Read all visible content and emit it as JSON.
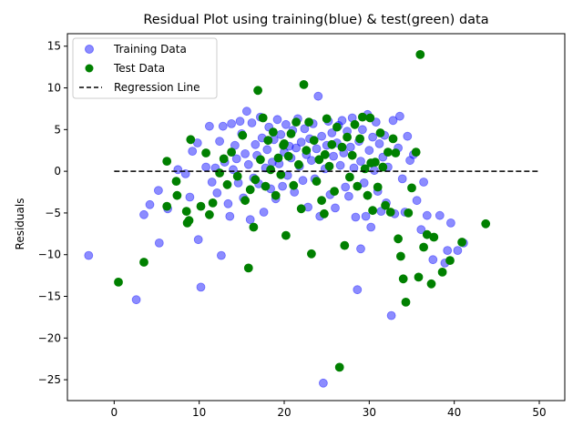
{
  "chart_data": {
    "type": "scatter",
    "title": "Residual Plot using training(blue) & test(green) data",
    "xlabel": "",
    "ylabel": "Residuals",
    "xlim": [
      -5.5,
      53
    ],
    "ylim": [
      -27.5,
      16.5
    ],
    "xticks": [
      0,
      10,
      20,
      30,
      40,
      50
    ],
    "yticks": [
      -25,
      -20,
      -15,
      -10,
      -5,
      0,
      5,
      10,
      15
    ],
    "grid": false,
    "legend": "top-left",
    "regression_line": {
      "name": "Regression Line",
      "x": [
        0,
        50
      ],
      "y": [
        0,
        0
      ],
      "color": "#000000",
      "style": "dashed"
    },
    "series": [
      {
        "name": "Training Data",
        "color": "#0000ff",
        "alpha": 0.45,
        "points": [
          [
            -3,
            -10.1
          ],
          [
            2.6,
            -15.4
          ],
          [
            3.5,
            -5.2
          ],
          [
            4.2,
            -4
          ],
          [
            5.2,
            -2.3
          ],
          [
            5.3,
            -8.6
          ],
          [
            6.3,
            -4.5
          ],
          [
            7.5,
            0.2
          ],
          [
            8.4,
            -0.3
          ],
          [
            8.9,
            -3.1
          ],
          [
            9.2,
            2.4
          ],
          [
            9.8,
            3.4
          ],
          [
            9.9,
            -8.2
          ],
          [
            10.2,
            -13.9
          ],
          [
            10.8,
            0.5
          ],
          [
            11.2,
            5.4
          ],
          [
            11.5,
            -1.3
          ],
          [
            11.9,
            0.4
          ],
          [
            12.1,
            -2.6
          ],
          [
            12.4,
            3.6
          ],
          [
            12.6,
            -10.1
          ],
          [
            12.8,
            5.4
          ],
          [
            13.0,
            1.1
          ],
          [
            13.4,
            -3.9
          ],
          [
            13.6,
            -5.4
          ],
          [
            13.8,
            5.7
          ],
          [
            14.0,
            0.2
          ],
          [
            14.2,
            3.1
          ],
          [
            14.4,
            1.5
          ],
          [
            14.6,
            -1.4
          ],
          [
            14.8,
            6.0
          ],
          [
            15.0,
            4.5
          ],
          [
            15.2,
            -3.2
          ],
          [
            15.4,
            2.1
          ],
          [
            15.6,
            7.2
          ],
          [
            15.8,
            0.8
          ],
          [
            16.0,
            -5.8
          ],
          [
            16.2,
            5.8
          ],
          [
            16.4,
            -0.8
          ],
          [
            16.6,
            3.2
          ],
          [
            16.8,
            1.9
          ],
          [
            17.0,
            -1.5
          ],
          [
            17.2,
            6.5
          ],
          [
            17.4,
            4.0
          ],
          [
            17.6,
            -4.9
          ],
          [
            17.8,
            0.4
          ],
          [
            18.0,
            2.6
          ],
          [
            18.2,
            5.3
          ],
          [
            18.4,
            -2.1
          ],
          [
            18.6,
            1.1
          ],
          [
            18.8,
            3.8
          ],
          [
            19.0,
            -3.3
          ],
          [
            19.2,
            6.2
          ],
          [
            19.4,
            0.9
          ],
          [
            19.6,
            4.4
          ],
          [
            19.8,
            -1.8
          ],
          [
            20.0,
            2.3
          ],
          [
            20.2,
            5.6
          ],
          [
            20.4,
            -0.5
          ],
          [
            20.6,
            3.0
          ],
          [
            20.8,
            1.6
          ],
          [
            21.0,
            4.9
          ],
          [
            21.2,
            -2.5
          ],
          [
            21.4,
            2.8
          ],
          [
            21.6,
            6.3
          ],
          [
            21.8,
            0.6
          ],
          [
            22.0,
            3.5
          ],
          [
            22.2,
            -1.1
          ],
          [
            22.4,
            5.1
          ],
          [
            22.6,
            2.0
          ],
          [
            22.8,
            -4.3
          ],
          [
            23.0,
            3.9
          ],
          [
            23.2,
            1.3
          ],
          [
            23.4,
            5.7
          ],
          [
            23.6,
            -0.9
          ],
          [
            23.8,
            2.7
          ],
          [
            24.0,
            9.0
          ],
          [
            24.2,
            -5.4
          ],
          [
            24.4,
            4.2
          ],
          [
            24.6,
            -25.4
          ],
          [
            24.8,
            0.3
          ],
          [
            25.0,
            3.1
          ],
          [
            25.2,
            6.0
          ],
          [
            25.4,
            -2.8
          ],
          [
            25.6,
            4.6
          ],
          [
            25.8,
            1.8
          ],
          [
            26.0,
            -4.4
          ],
          [
            26.2,
            3.4
          ],
          [
            26.4,
            5.5
          ],
          [
            26.6,
            0.7
          ],
          [
            26.8,
            6.1
          ],
          [
            27.0,
            2.2
          ],
          [
            27.2,
            -1.9
          ],
          [
            27.4,
            4.8
          ],
          [
            27.6,
            -3.0
          ],
          [
            27.8,
            2.9
          ],
          [
            28.0,
            6.4
          ],
          [
            28.2,
            0.4
          ],
          [
            28.4,
            -5.5
          ],
          [
            28.6,
            -14.2
          ],
          [
            28.8,
            3.6
          ],
          [
            29.0,
            1.2
          ],
          [
            29.2,
            5.0
          ],
          [
            29.4,
            -1.4
          ],
          [
            29.6,
            -5.4
          ],
          [
            29.8,
            6.8
          ],
          [
            30.0,
            2.5
          ],
          [
            30.2,
            -6.7
          ],
          [
            30.4,
            4.1
          ],
          [
            30.6,
            0.1
          ],
          [
            30.8,
            5.9
          ],
          [
            31.0,
            -2.4
          ],
          [
            31.2,
            3.3
          ],
          [
            31.4,
            -4.8
          ],
          [
            31.6,
            1.7
          ],
          [
            31.8,
            4.3
          ],
          [
            32.0,
            -3.8
          ],
          [
            32.2,
            0.5
          ],
          [
            32.6,
            -17.3
          ],
          [
            32.8,
            6.1
          ],
          [
            33.0,
            -5.1
          ],
          [
            33.4,
            2.8
          ],
          [
            33.6,
            6.6
          ],
          [
            33.9,
            -0.9
          ],
          [
            34.2,
            -4.9
          ],
          [
            34.5,
            4.2
          ],
          [
            34.8,
            1.3
          ],
          [
            35.2,
            2.0
          ],
          [
            35.6,
            -3.5
          ],
          [
            36.1,
            -7.0
          ],
          [
            36.4,
            -1.3
          ],
          [
            36.8,
            -5.3
          ],
          [
            37.5,
            -10.6
          ],
          [
            38.3,
            -5.3
          ],
          [
            38.9,
            -11.0
          ],
          [
            39.2,
            -9.5
          ],
          [
            39.6,
            -6.2
          ],
          [
            40.4,
            -9.5
          ],
          [
            41.1,
            -8.6
          ],
          [
            29.0,
            -9.3
          ]
        ]
      },
      {
        "name": "Test Data",
        "color": "#008000",
        "alpha": 1.0,
        "points": [
          [
            0.5,
            -13.3
          ],
          [
            3.5,
            -10.9
          ],
          [
            6.2,
            1.2
          ],
          [
            6.2,
            -4.2
          ],
          [
            7.3,
            -1.2
          ],
          [
            7.4,
            -2.9
          ],
          [
            8.5,
            -4.8
          ],
          [
            8.6,
            -6.2
          ],
          [
            8.8,
            -5.9
          ],
          [
            9.0,
            3.8
          ],
          [
            10.2,
            -4.2
          ],
          [
            10.8,
            2.2
          ],
          [
            11.2,
            -5.2
          ],
          [
            11.6,
            -3.8
          ],
          [
            12.4,
            -0.2
          ],
          [
            12.9,
            1.5
          ],
          [
            13.3,
            -1.6
          ],
          [
            13.8,
            2.3
          ],
          [
            14.5,
            -0.6
          ],
          [
            15.1,
            4.3
          ],
          [
            15.4,
            -3.5
          ],
          [
            15.8,
            -11.6
          ],
          [
            16.0,
            -2.2
          ],
          [
            16.4,
            -6.7
          ],
          [
            16.6,
            -1.0
          ],
          [
            16.9,
            9.7
          ],
          [
            17.2,
            1.4
          ],
          [
            17.5,
            6.4
          ],
          [
            17.8,
            -1.8
          ],
          [
            18.1,
            3.7
          ],
          [
            18.4,
            0.2
          ],
          [
            18.7,
            4.7
          ],
          [
            19.0,
            -2.9
          ],
          [
            19.3,
            1.6
          ],
          [
            19.6,
            -0.4
          ],
          [
            19.9,
            3.1
          ],
          [
            20.2,
            -7.7
          ],
          [
            20.5,
            1.8
          ],
          [
            20.8,
            4.5
          ],
          [
            21.1,
            -1.7
          ],
          [
            21.4,
            5.9
          ],
          [
            21.7,
            0.8
          ],
          [
            22.0,
            -4.5
          ],
          [
            22.3,
            10.4
          ],
          [
            22.6,
            2.5
          ],
          [
            22.9,
            5.9
          ],
          [
            23.2,
            -9.9
          ],
          [
            23.5,
            3.7
          ],
          [
            23.8,
            -1.2
          ],
          [
            24.1,
            1.4
          ],
          [
            24.4,
            -3.5
          ],
          [
            24.7,
            -5.1
          ],
          [
            25.0,
            6.3
          ],
          [
            25.3,
            0.6
          ],
          [
            25.6,
            3.2
          ],
          [
            25.9,
            -2.4
          ],
          [
            26.2,
            5.3
          ],
          [
            26.5,
            -23.5
          ],
          [
            26.8,
            2.9
          ],
          [
            27.1,
            -8.9
          ],
          [
            27.4,
            4.1
          ],
          [
            27.7,
            -0.7
          ],
          [
            28.0,
            1.9
          ],
          [
            28.3,
            5.6
          ],
          [
            28.6,
            -1.8
          ],
          [
            28.9,
            3.9
          ],
          [
            29.2,
            6.5
          ],
          [
            29.5,
            0.3
          ],
          [
            29.8,
            -2.9
          ],
          [
            30.1,
            6.4
          ],
          [
            30.4,
            -4.7
          ],
          [
            30.7,
            1.1
          ],
          [
            31.0,
            -1.9
          ],
          [
            31.3,
            4.6
          ],
          [
            31.6,
            0.5
          ],
          [
            31.9,
            -4.1
          ],
          [
            32.2,
            2.3
          ],
          [
            32.5,
            -4.9
          ],
          [
            32.8,
            3.9
          ],
          [
            33.1,
            2.2
          ],
          [
            33.4,
            -8.1
          ],
          [
            33.7,
            -10.2
          ],
          [
            34.0,
            -12.9
          ],
          [
            34.3,
            -15.7
          ],
          [
            34.6,
            -5.0
          ],
          [
            35.0,
            -2.0
          ],
          [
            35.5,
            2.3
          ],
          [
            35.8,
            -12.7
          ],
          [
            36.0,
            14.0
          ],
          [
            36.4,
            -9.1
          ],
          [
            36.8,
            -7.6
          ],
          [
            37.3,
            -13.5
          ],
          [
            37.6,
            -7.9
          ],
          [
            38.6,
            -12.1
          ],
          [
            39.5,
            -10.7
          ],
          [
            40.9,
            -8.5
          ],
          [
            43.7,
            -6.3
          ],
          [
            20.0,
            3.3
          ],
          [
            24.8,
            2.0
          ],
          [
            30.2,
            1.0
          ]
        ]
      }
    ]
  }
}
